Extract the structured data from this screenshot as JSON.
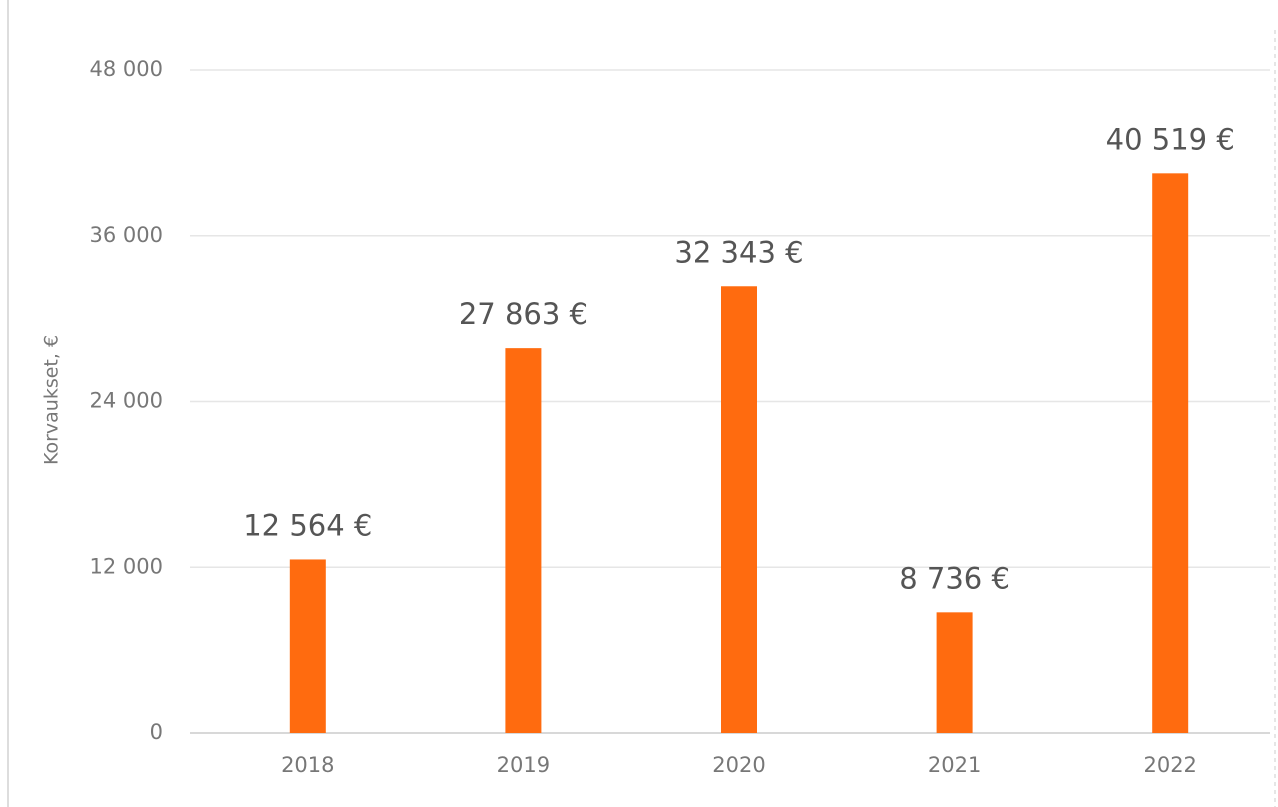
{
  "chart_data": {
    "type": "bar",
    "y_label": "Korvaukset, €",
    "categories": [
      "2018",
      "2019",
      "2020",
      "2021",
      "2022"
    ],
    "values": [
      12564,
      27863,
      32343,
      8736,
      40519
    ],
    "value_labels": [
      "12 564 €",
      "27 863 €",
      "32 343 €",
      "8 736 €",
      "40 519 €"
    ],
    "color": "#ff6b0f",
    "ylim": [
      0,
      48000
    ],
    "yticks": [
      0,
      {
        "value": 12000,
        "label": "12 000"
      },
      {
        "value": 24000,
        "label": "24 000"
      },
      {
        "value": 36000,
        "label": "36 000"
      },
      {
        "value": 48000,
        "label": "48 000"
      }
    ],
    "grid": true
  }
}
